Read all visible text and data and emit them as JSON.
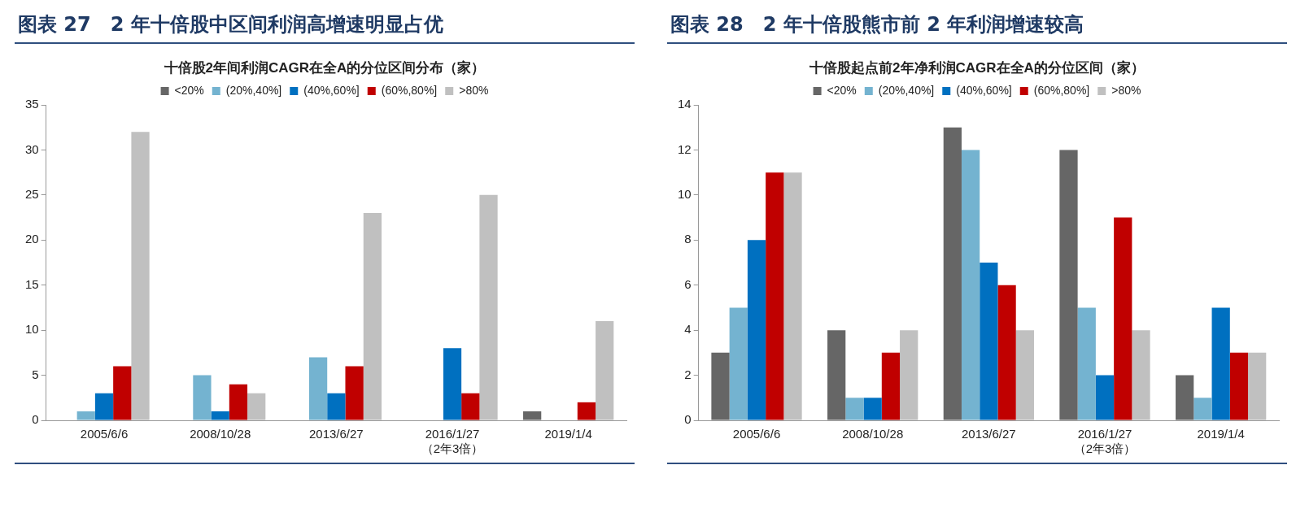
{
  "chart_data": [
    {
      "type": "bar",
      "title": "图表 27　2 年十倍股中区间利润高增速明显占优",
      "subtitle": "十倍股2年间利润CAGR在全A的分位区间分布（家）",
      "categories": [
        "2005/6/6",
        "2008/10/28",
        "2013/6/27",
        "2016/1/27\n（2年3倍）",
        "2019/1/4"
      ],
      "series": [
        {
          "name": "<20%",
          "color": "#666666",
          "values": [
            0,
            0,
            0,
            0,
            1
          ]
        },
        {
          "name": "(20%,40%]",
          "color": "#74b3d0",
          "values": [
            1,
            5,
            7,
            0,
            0
          ]
        },
        {
          "name": "(40%,60%]",
          "color": "#0070c0",
          "values": [
            3,
            1,
            3,
            8,
            0
          ]
        },
        {
          "name": "(60%,80%]",
          "color": "#c00000",
          "values": [
            6,
            4,
            6,
            3,
            2
          ]
        },
        {
          "name": ">80%",
          "color": "#c0c0c0",
          "values": [
            32,
            3,
            23,
            25,
            11
          ]
        }
      ],
      "ylim": [
        0,
        35
      ],
      "yticks": [
        0,
        5,
        10,
        15,
        20,
        25,
        30,
        35
      ],
      "grid": false,
      "legend": "top"
    },
    {
      "type": "bar",
      "title": "图表 28　2 年十倍股熊市前 2 年利润增速较高",
      "subtitle": "十倍股起点前2年净利润CAGR在全A的分位区间（家）",
      "categories": [
        "2005/6/6",
        "2008/10/28",
        "2013/6/27",
        "2016/1/27\n（2年3倍）",
        "2019/1/4"
      ],
      "series": [
        {
          "name": "<20%",
          "color": "#666666",
          "values": [
            3,
            4,
            13,
            12,
            2
          ]
        },
        {
          "name": "(20%,40%]",
          "color": "#74b3d0",
          "values": [
            5,
            1,
            12,
            5,
            1
          ]
        },
        {
          "name": "(40%,60%]",
          "color": "#0070c0",
          "values": [
            8,
            1,
            7,
            2,
            5
          ]
        },
        {
          "name": "(60%,80%]",
          "color": "#c00000",
          "values": [
            11,
            3,
            6,
            9,
            3
          ]
        },
        {
          "name": ">80%",
          "color": "#c0c0c0",
          "values": [
            11,
            4,
            4,
            4,
            3
          ]
        }
      ],
      "ylim": [
        0,
        14
      ],
      "yticks": [
        0,
        2,
        4,
        6,
        8,
        10,
        12,
        14
      ],
      "grid": false,
      "legend": "top"
    }
  ]
}
